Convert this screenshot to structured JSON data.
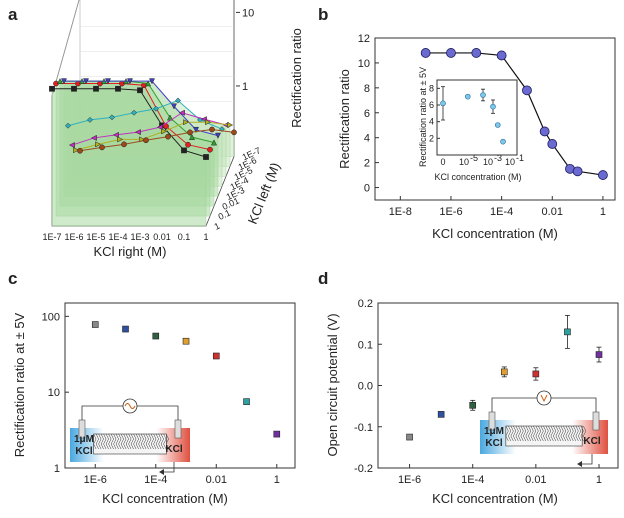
{
  "panels": {
    "a": "a",
    "b": "b",
    "c": "c",
    "d": "d"
  },
  "chart_data": [
    {
      "panel": "a",
      "type": "line",
      "projection": "3d",
      "xlabel": "KCl right (M)",
      "ylabel": "KCl left (M)",
      "zlabel": "Rectification ratio",
      "x_ticks": [
        "1E-7",
        "1E-6",
        "1E-5",
        "1E-4",
        "1E-3",
        "0.01",
        "0.1",
        "1"
      ],
      "y_ticks": [
        "1E-7",
        "1E-6",
        "1E-5",
        "1E-4",
        "1E-3",
        "0.01",
        "0.1",
        "1"
      ],
      "z_ticks": [
        "10",
        "1"
      ],
      "series": [
        {
          "color": "#222222",
          "marker": "square",
          "values": [
            11,
            11,
            11,
            11,
            10.5,
            3.5,
            1.6,
            1.3
          ]
        },
        {
          "color": "#e02020",
          "marker": "circle",
          "values": [
            9.5,
            9.5,
            9.5,
            9.5,
            9,
            2.5,
            1.4,
            1.2
          ]
        },
        {
          "color": "#30a030",
          "marker": "triangle",
          "values": [
            7.5,
            7.5,
            7.5,
            7.5,
            7,
            2.4,
            1.3,
            1.1
          ]
        },
        {
          "color": "#4040c0",
          "marker": "triangle-down",
          "values": [
            5.5,
            5.5,
            5.5,
            5.5,
            5.5,
            2.5,
            1.2,
            1.0
          ]
        },
        {
          "color": "#30b0c0",
          "marker": "diamond",
          "values": [
            1.0,
            1.2,
            1.3,
            1.5,
            1.7,
            2.2,
            1.2,
            0.9
          ]
        },
        {
          "color": "#c030c0",
          "marker": "triangle-left",
          "values": [
            0.4,
            0.5,
            0.55,
            0.6,
            0.7,
            1.1,
            0.9,
            0.75
          ]
        },
        {
          "color": "#b0b020",
          "marker": "triangle-right",
          "values": [
            0.25,
            0.3,
            0.35,
            0.35,
            0.45,
            0.6,
            0.6,
            0.55
          ]
        },
        {
          "color": "#9c4a1a",
          "marker": "circle",
          "values": [
            0.18,
            0.2,
            0.22,
            0.25,
            0.28,
            0.32,
            0.35,
            0.32
          ]
        }
      ]
    },
    {
      "panel": "b",
      "type": "line",
      "xlabel": "KCl concentration (M)",
      "ylabel": "Rectification ratio",
      "x_scale": "log",
      "xlim": [
        1e-09,
        3
      ],
      "ylim": [
        -1,
        12
      ],
      "x_ticks": [
        "1E-8",
        "1E-6",
        "1E-4",
        "0.01",
        "1"
      ],
      "y_ticks": [
        "0",
        "2",
        "4",
        "6",
        "8",
        "10",
        "12"
      ],
      "x": [
        1e-07,
        1e-06,
        1e-05,
        0.0001,
        0.001,
        0.005,
        0.01,
        0.05,
        0.1,
        1
      ],
      "values": [
        10.8,
        10.8,
        10.8,
        10.6,
        7.8,
        4.5,
        3.5,
        1.5,
        1.3,
        1.0
      ],
      "inset": {
        "xlabel": "KCl concentration (M)",
        "ylabel": "Rectification ratio at ± 5V",
        "x_ticks": [
          "0",
          "10",
          "-5",
          "10",
          "-3",
          "10",
          "-1"
        ],
        "y_ticks": [
          "2",
          "4",
          "6",
          "8"
        ],
        "x": [
          0,
          3e-05,
          0.001,
          0.01,
          0.03,
          0.1
        ],
        "values": [
          6.2,
          7.0,
          7.2,
          5.8,
          3.6,
          1.6
        ],
        "errors": [
          2.0,
          0,
          0.7,
          0.8,
          0,
          0
        ]
      }
    },
    {
      "panel": "c",
      "type": "scatter",
      "xlabel": "KCl concentration (M)",
      "ylabel": "Rectification ratio at ± 5V",
      "x_scale": "log",
      "y_scale": "log",
      "xlim": [
        1e-07,
        4
      ],
      "ylim": [
        1,
        150
      ],
      "x_ticks": [
        "1E-6",
        "1E-4",
        "0.01",
        "1"
      ],
      "y_ticks": [
        "1",
        "10",
        "100"
      ],
      "x": [
        1e-06,
        1e-05,
        0.0001,
        0.001,
        0.01,
        0.1,
        1
      ],
      "values": [
        78,
        68,
        55,
        47,
        30,
        7.5,
        2.8
      ],
      "colors": [
        "#888888",
        "#3050a0",
        "#306040",
        "#e0a030",
        "#d03030",
        "#30a0a0",
        "#7030a0"
      ],
      "inset_labels": {
        "left": "1μM\nKCl",
        "right": "KCl"
      }
    },
    {
      "panel": "d",
      "type": "scatter",
      "xlabel": "KCl concentration (M)",
      "ylabel": "Open circuit potential (V)",
      "x_scale": "log",
      "xlim": [
        1e-07,
        4
      ],
      "ylim": [
        -0.2,
        0.2
      ],
      "x_ticks": [
        "1E-6",
        "1E-4",
        "0.01",
        "1"
      ],
      "y_ticks": [
        "-0.2",
        "-0.1",
        "0.0",
        "0.1",
        "0.2"
      ],
      "x": [
        1e-06,
        1e-05,
        0.0001,
        0.001,
        0.01,
        0.1,
        1
      ],
      "values": [
        -0.125,
        -0.07,
        -0.048,
        0.033,
        0.028,
        0.13,
        0.075
      ],
      "errors": [
        0.005,
        0.004,
        0.012,
        0.012,
        0.015,
        0.04,
        0.018
      ],
      "colors": [
        "#888888",
        "#3050a0",
        "#306040",
        "#e0a030",
        "#d03030",
        "#30a0a0",
        "#7030a0"
      ],
      "inset_labels": {
        "left": "1μM\nKCl",
        "right": "KCl"
      }
    }
  ]
}
